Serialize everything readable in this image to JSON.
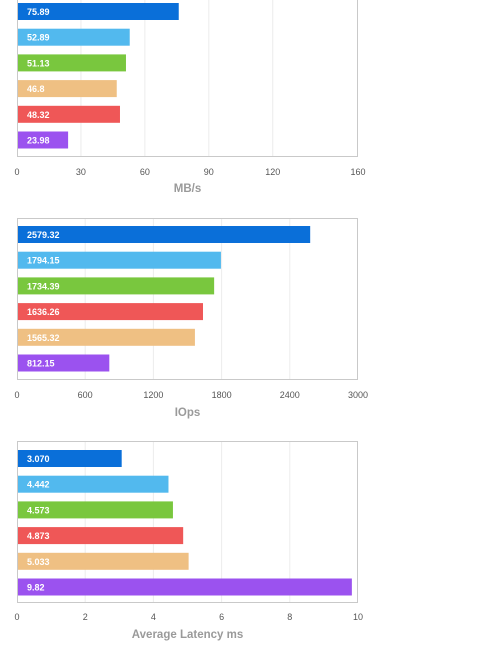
{
  "chart_data": [
    {
      "type": "bar",
      "orientation": "horizontal",
      "xlabel": "MB/s",
      "xlim": [
        0,
        160
      ],
      "xticks": [
        0,
        30,
        60,
        90,
        120,
        160
      ],
      "grid": true,
      "bars": [
        {
          "value": 75.89,
          "label": "75.89",
          "color": "#0a6fd9"
        },
        {
          "value": 52.89,
          "label": "52.89",
          "color": "#52b9ee"
        },
        {
          "value": 51.13,
          "label": "51.13",
          "color": "#79c73e"
        },
        {
          "value": 46.8,
          "label": "46.8",
          "color": "#efc083"
        },
        {
          "value": 48.32,
          "label": "48.32",
          "color": "#ef5757"
        },
        {
          "value": 23.98,
          "label": "23.98",
          "color": "#9b52ef"
        }
      ]
    },
    {
      "type": "bar",
      "orientation": "horizontal",
      "xlabel": "IOps",
      "xlim": [
        0,
        3000
      ],
      "xticks": [
        0,
        600,
        1200,
        1800,
        2400,
        3000
      ],
      "grid": true,
      "bars": [
        {
          "value": 2579.32,
          "label": "2579.32",
          "color": "#0a6fd9"
        },
        {
          "value": 1794.15,
          "label": "1794.15",
          "color": "#52b9ee"
        },
        {
          "value": 1734.39,
          "label": "1734.39",
          "color": "#79c73e"
        },
        {
          "value": 1636.26,
          "label": "1636.26",
          "color": "#ef5757"
        },
        {
          "value": 1565.32,
          "label": "1565.32",
          "color": "#efc083"
        },
        {
          "value": 812.15,
          "label": "812.15",
          "color": "#9b52ef"
        }
      ]
    },
    {
      "type": "bar",
      "orientation": "horizontal",
      "xlabel": "Average Latency ms",
      "xlim": [
        0,
        10
      ],
      "xticks": [
        0,
        2,
        4,
        6,
        8,
        10
      ],
      "grid": true,
      "bars": [
        {
          "value": 3.07,
          "label": "3.070",
          "color": "#0a6fd9"
        },
        {
          "value": 4.442,
          "label": "4.442",
          "color": "#52b9ee"
        },
        {
          "value": 4.573,
          "label": "4.573",
          "color": "#79c73e"
        },
        {
          "value": 4.873,
          "label": "4.873",
          "color": "#ef5757"
        },
        {
          "value": 5.033,
          "label": "5.033",
          "color": "#efc083"
        },
        {
          "value": 9.82,
          "label": "9.82",
          "color": "#9b52ef"
        }
      ]
    }
  ]
}
